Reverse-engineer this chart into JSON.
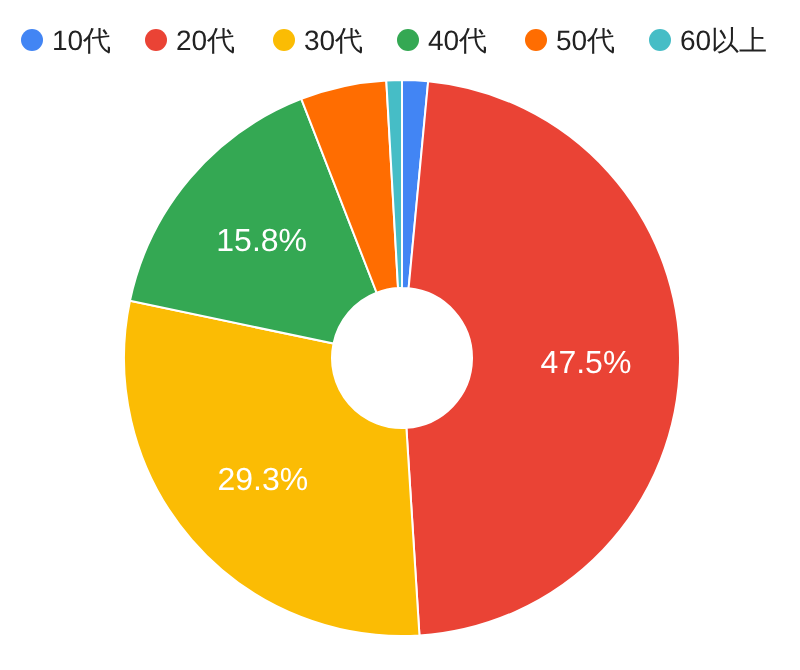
{
  "chart_data": {
    "type": "donut",
    "categories": [
      "10代",
      "20代",
      "30代",
      "40代",
      "50代",
      "60以上"
    ],
    "values": [
      1.5,
      47.5,
      29.3,
      15.8,
      5.0,
      0.9
    ],
    "colors": [
      "#4285f4",
      "#ea4335",
      "#fbbc04",
      "#34a853",
      "#ff6d01",
      "#46bdc6"
    ],
    "value_labels": [
      null,
      "47.5%",
      "29.3%",
      "15.8%",
      null,
      null
    ],
    "legend": "top"
  }
}
